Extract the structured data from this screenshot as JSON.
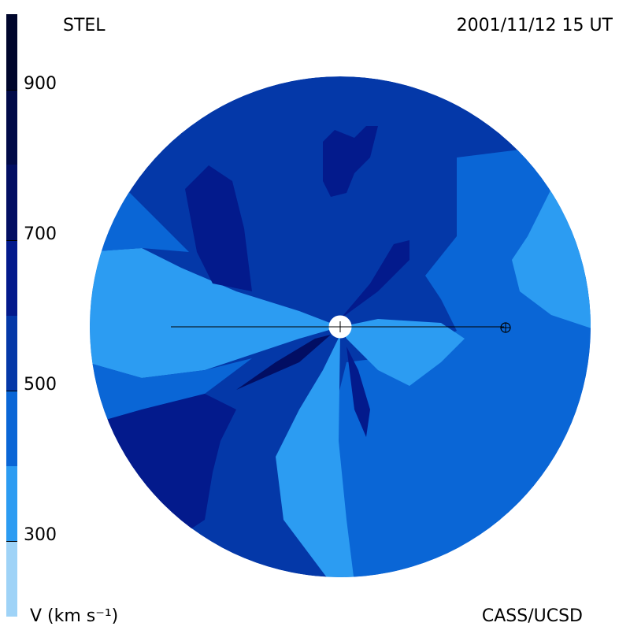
{
  "labels": {
    "top_left": "STEL",
    "top_right": "2001/11/12 15 UT",
    "bottom_left": "V (km s⁻¹)",
    "bottom_right": "CASS/UCSD"
  },
  "chart_data": {
    "type": "heatmap",
    "colorbar": {
      "range": [
        200,
        1000
      ],
      "ticks": [
        300,
        500,
        700,
        900
      ],
      "bands": [
        {
          "from": 200,
          "to": 300,
          "color": "#9fd3f7"
        },
        {
          "from": 300,
          "to": 400,
          "color": "#2c9cf2"
        },
        {
          "from": 400,
          "to": 500,
          "color": "#0a66d6"
        },
        {
          "from": 500,
          "to": 600,
          "color": "#0438a8"
        },
        {
          "from": 600,
          "to": 700,
          "color": "#031a8c"
        },
        {
          "from": 700,
          "to": 800,
          "color": "#020e63"
        },
        {
          "from": 800,
          "to": 900,
          "color": "#010a48"
        },
        {
          "from": 900,
          "to": 1000,
          "color": "#00062c"
        }
      ]
    }
  }
}
